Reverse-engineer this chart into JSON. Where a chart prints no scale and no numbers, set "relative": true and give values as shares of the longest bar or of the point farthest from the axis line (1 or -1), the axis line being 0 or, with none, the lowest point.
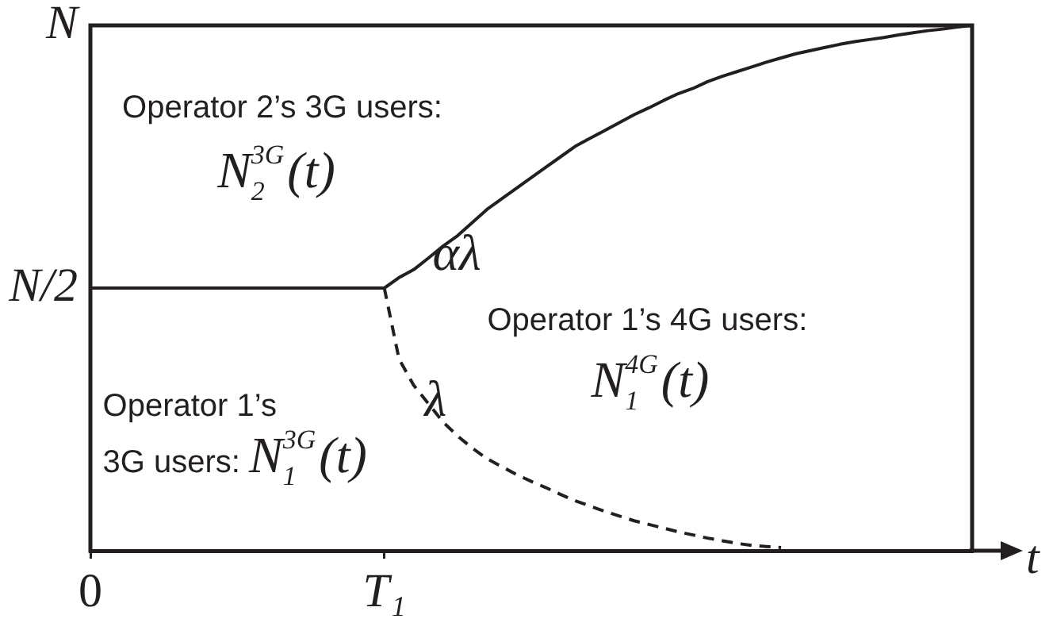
{
  "chart_data": {
    "type": "line",
    "xlabel": "t",
    "relative": true,
    "categories": [
      "0",
      null,
      null,
      null,
      null,
      null,
      null,
      null,
      null,
      null,
      null,
      null,
      null,
      null,
      null,
      null,
      null,
      null,
      null,
      null,
      "T₁",
      null,
      null,
      null,
      null,
      null,
      null,
      null,
      null,
      null,
      null,
      null,
      null,
      null,
      null,
      null,
      null,
      null,
      null,
      null,
      null,
      null,
      null,
      null,
      null,
      null,
      null,
      null,
      null,
      null,
      null,
      null,
      null,
      null,
      null,
      null,
      null,
      null,
      null,
      null,
      null
    ],
    "series": [
      {
        "color": "#231f20",
        "values": [
          0.5,
          0.5,
          0.5,
          0.5,
          0.5,
          0.5,
          0.5,
          0.5,
          0.5,
          0.5,
          0.5,
          0.5,
          0.5,
          0.5,
          0.5,
          0.5,
          0.5,
          0.5,
          0.5,
          0.5,
          0.5,
          0.52,
          0.535,
          0.557,
          0.58,
          0.6,
          0.625,
          0.65,
          0.67,
          0.69,
          0.71,
          0.73,
          0.75,
          0.77,
          0.785,
          0.8,
          0.815,
          0.83,
          0.843,
          0.857,
          0.87,
          0.88,
          0.893,
          0.903,
          0.912,
          0.921,
          0.93,
          0.938,
          0.946,
          0.952,
          0.958,
          0.964,
          0.969,
          0.973,
          0.977,
          0.982,
          0.986,
          0.99,
          0.993,
          0.997,
          1
        ]
      },
      {
        "color": "#231f20",
        "line_style": "dashed",
        "values": [
          null,
          null,
          null,
          null,
          null,
          null,
          null,
          null,
          null,
          null,
          null,
          null,
          null,
          null,
          null,
          null,
          null,
          null,
          null,
          null,
          0.5,
          0.365,
          0.315,
          0.28,
          0.245,
          0.218,
          0.195,
          0.175,
          0.16,
          0.145,
          0.132,
          0.12,
          0.107,
          0.095,
          0.085,
          0.075,
          0.066,
          0.057,
          0.05,
          0.043,
          0.036,
          0.03,
          0.024,
          0.019,
          0.014,
          0.01,
          0.008,
          0.006,
          null,
          null,
          null,
          null,
          null,
          null,
          null,
          null,
          null,
          null,
          null,
          null,
          null
        ]
      }
    ],
    "annotations": [
      "N",
      "N/2",
      "Operator 2’s 3G users:",
      "N$_{2}$$^{3G}$(t)",
      "αλ",
      "Operator 1’s 4G users:",
      "N$_{1}$$^{4G}$(t)",
      "λ",
      "Operator 1’s",
      "3G users: N$_{1}$$^{3G}$(t)"
    ]
  }
}
